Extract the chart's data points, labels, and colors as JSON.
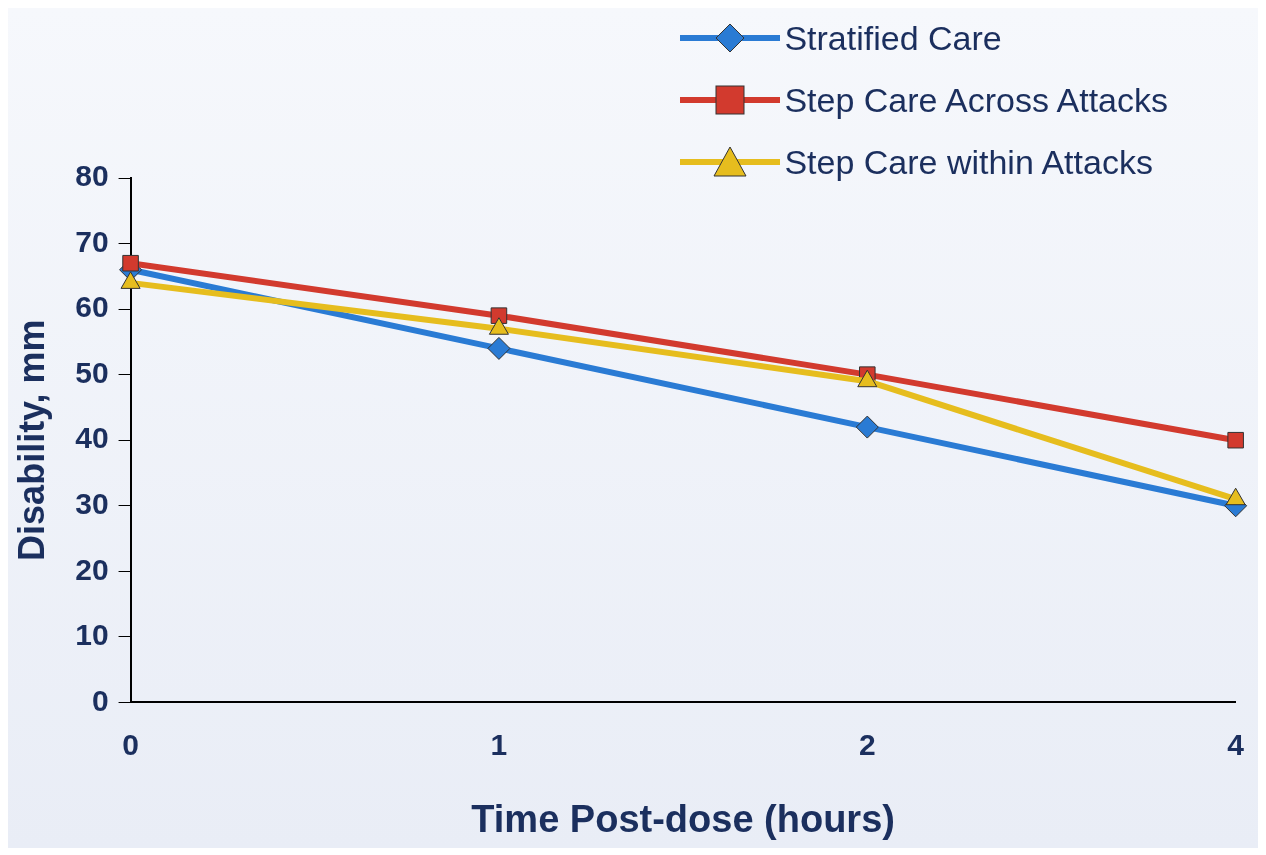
{
  "chart_data": {
    "type": "line",
    "xlabel": "Time Post-dose (hours)",
    "ylabel": "Disability, mm",
    "categories": [
      "0",
      "1",
      "2",
      "4"
    ],
    "ylim": [
      0,
      80
    ],
    "yticks": [
      0,
      10,
      20,
      30,
      40,
      50,
      60,
      70,
      80
    ],
    "grid": false,
    "legend": "top right",
    "series": [
      {
        "name": "Stratified Care",
        "color": "#2a7bd4",
        "marker": "diamond",
        "values": [
          66,
          54,
          42,
          30
        ]
      },
      {
        "name": "Step Care Across Attacks",
        "color": "#d23a2e",
        "marker": "square",
        "values": [
          67,
          59,
          50,
          40
        ]
      },
      {
        "name": "Step Care within Attacks",
        "color": "#e6bd1e",
        "marker": "triangle",
        "values": [
          64,
          57,
          49,
          31
        ]
      }
    ]
  }
}
